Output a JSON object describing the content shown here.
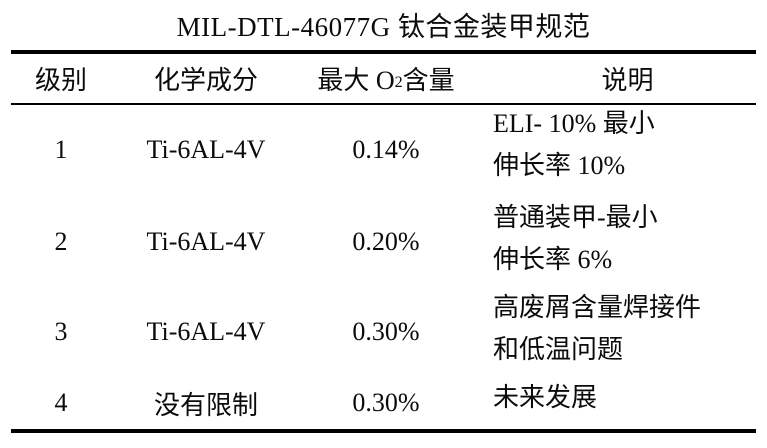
{
  "table": {
    "title": "MIL-DTL-46077G 钛合金装甲规范",
    "header": {
      "grade": "级别",
      "composition": "化学成分",
      "max_o2_pre": "最大 O",
      "max_o2_sub": "2",
      "max_o2_post": " 含量",
      "description": "说明"
    },
    "rows": [
      {
        "grade": "1",
        "composition": "Ti-6AL-4V",
        "max_o2": "0.14%",
        "desc_line1": "ELI- 10% 最小",
        "desc_line2": "伸长率 10%"
      },
      {
        "grade": "2",
        "composition": "Ti-6AL-4V",
        "max_o2": "0.20%",
        "desc_line1": "普通装甲-最小",
        "desc_line2": "伸长率 6%"
      },
      {
        "grade": "3",
        "composition": "Ti-6AL-4V",
        "max_o2": "0.30%",
        "desc_line1": "高废屑含量焊接件",
        "desc_line2": "和低温问题"
      },
      {
        "grade": "4",
        "composition": "没有限制",
        "max_o2": "0.30%",
        "desc_line1": "未来发展",
        "desc_line2": ""
      }
    ],
    "colors": {
      "text": "#0b0b0b",
      "rule": "#000000",
      "background": "#ffffff"
    }
  }
}
